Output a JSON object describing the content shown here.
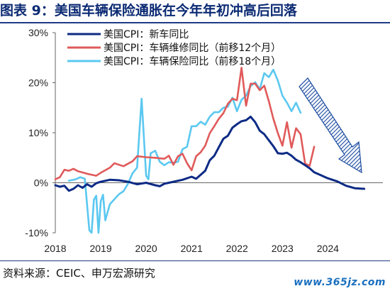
{
  "title": "图表 9：美国车辆保险通胀在今年年初冲高后回落",
  "source": "资料来源：CEIC、申万宏源研究",
  "watermark": "www.365jz.com",
  "colors": {
    "title": "#0b2a73",
    "new_car": "#0d2b85",
    "repair": "#e05a5a",
    "insurance": "#5bc8f0",
    "arrow": "#1a4aa0"
  },
  "chart_data": {
    "type": "line",
    "title": "",
    "xlabel": "",
    "ylabel": "",
    "xlim": [
      2018,
      2024.9
    ],
    "ylim": [
      -10,
      30
    ],
    "yticks": [
      -10,
      0,
      10,
      20,
      30
    ],
    "ytick_labels": [
      "-10%",
      "0%",
      "10%",
      "20%",
      "30%"
    ],
    "xticks": [
      2018,
      2019,
      2020,
      2021,
      2022,
      2023,
      2024
    ],
    "xtick_labels": [
      "2018",
      "2019",
      "2020",
      "2021",
      "2022",
      "2023",
      "2024"
    ],
    "grid": false,
    "legend_position": "top-left",
    "annotations": [
      "downward-trend-arrow"
    ],
    "series": [
      {
        "name": "美国CPI：新车同比",
        "color": "#0d2b85",
        "x": [
          2018.0,
          2018.1,
          2018.2,
          2018.3,
          2018.4,
          2018.5,
          2018.6,
          2018.7,
          2018.8,
          2018.9,
          2019.0,
          2019.2,
          2019.4,
          2019.6,
          2019.8,
          2020.0,
          2020.2,
          2020.3,
          2020.4,
          2020.6,
          2020.8,
          2021.0,
          2021.1,
          2021.2,
          2021.3,
          2021.4,
          2021.5,
          2021.6,
          2021.7,
          2021.8,
          2021.9,
          2022.0,
          2022.1,
          2022.2,
          2022.3,
          2022.4,
          2022.5,
          2022.6,
          2022.7,
          2022.8,
          2022.9,
          2023.0,
          2023.1,
          2023.2,
          2023.3,
          2023.4,
          2023.5,
          2023.6,
          2023.7,
          2023.8,
          2024.0,
          2024.2,
          2024.4,
          2024.6,
          2024.8
        ],
        "values": [
          -0.5,
          -0.8,
          -0.6,
          -1.6,
          -1.2,
          -0.5,
          -1.0,
          -0.3,
          -0.8,
          -0.1,
          0.2,
          0.6,
          0.5,
          0.2,
          -0.3,
          0.0,
          -0.5,
          -0.7,
          -0.2,
          0.2,
          0.6,
          1.2,
          0.8,
          1.6,
          2.4,
          4.5,
          5.4,
          7.1,
          8.8,
          9.4,
          11.0,
          11.7,
          12.3,
          12.5,
          13.2,
          12.1,
          10.4,
          9.7,
          8.5,
          7.3,
          5.9,
          5.8,
          6.0,
          5.4,
          4.6,
          4.1,
          3.5,
          2.9,
          2.1,
          1.7,
          0.9,
          0.3,
          -0.6,
          -1.1,
          -1.2
        ]
      },
      {
        "name": "美国CPI：车辆维修同比（前移12个月）",
        "color": "#e05a5a",
        "x": [
          2018.0,
          2018.1,
          2018.2,
          2018.3,
          2018.4,
          2018.5,
          2018.7,
          2018.9,
          2019.0,
          2019.2,
          2019.3,
          2019.5,
          2019.7,
          2019.8,
          2020.0,
          2020.2,
          2020.4,
          2020.5,
          2020.6,
          2020.7,
          2020.8,
          2020.9,
          2021.0,
          2021.1,
          2021.2,
          2021.3,
          2021.4,
          2021.5,
          2021.6,
          2021.7,
          2021.8,
          2021.9,
          2022.0,
          2022.1,
          2022.2,
          2022.3,
          2022.4,
          2022.5,
          2022.6,
          2022.7,
          2022.8,
          2022.9,
          2023.0,
          2023.1,
          2023.2,
          2023.3,
          2023.4,
          2023.5,
          2023.6,
          2023.7
        ],
        "values": [
          0.7,
          1.1,
          2.6,
          2.4,
          2.8,
          2.3,
          1.8,
          1.4,
          2.0,
          3.0,
          3.9,
          3.3,
          4.3,
          5.3,
          5.1,
          5.0,
          4.8,
          5.4,
          3.6,
          5.3,
          5.8,
          3.9,
          2.5,
          5.3,
          6.1,
          7.4,
          9.9,
          11.3,
          12.8,
          13.9,
          15.8,
          16.8,
          16.5,
          23.0,
          15.4,
          19.8,
          19.8,
          18.5,
          19.4,
          16.3,
          12.8,
          9.9,
          7.4,
          12.1,
          7.0,
          10.9,
          9.7,
          3.8,
          3.4,
          7.2
        ]
      },
      {
        "name": "美国CPI：车辆保险同比（前移18个月）",
        "color": "#5bc8f0",
        "x": [
          2018.3,
          2018.45,
          2018.55,
          2018.65,
          2018.75,
          2018.8,
          2018.85,
          2018.9,
          2018.95,
          2019.0,
          2019.05,
          2019.1,
          2019.2,
          2019.3,
          2019.4,
          2019.5,
          2019.6,
          2019.7,
          2019.8,
          2019.9,
          2020.0,
          2020.05,
          2020.1,
          2020.2,
          2020.3,
          2020.4,
          2020.5,
          2020.6,
          2020.7,
          2020.8,
          2020.9,
          2021.0,
          2021.1,
          2021.2,
          2021.3,
          2021.4,
          2021.5,
          2021.6,
          2021.7,
          2021.8,
          2021.9,
          2022.0,
          2022.1,
          2022.2,
          2022.3,
          2022.4,
          2022.5,
          2022.6,
          2022.7,
          2022.8,
          2022.9,
          2023.0,
          2023.1,
          2023.2,
          2023.3,
          2023.4
        ],
        "values": [
          0.4,
          0.7,
          1.1,
          0.8,
          -9.5,
          -10.3,
          -3.4,
          -2.6,
          -11.0,
          -3.7,
          -2.4,
          -7.5,
          -4.3,
          -3.3,
          -2.3,
          -1.7,
          -0.2,
          1.9,
          3.0,
          16.8,
          1.4,
          0.7,
          5.9,
          6.4,
          4.2,
          3.5,
          4.1,
          4.0,
          4.2,
          6.7,
          7.2,
          11.3,
          11.3,
          12.2,
          11.6,
          13.2,
          14.1,
          14.1,
          15.0,
          15.2,
          17.0,
          14.3,
          16.6,
          17.4,
          19.3,
          20.1,
          18.7,
          21.9,
          21.1,
          22.6,
          20.4,
          17.4,
          16.0,
          14.3,
          16.0,
          14.0
        ]
      }
    ]
  }
}
